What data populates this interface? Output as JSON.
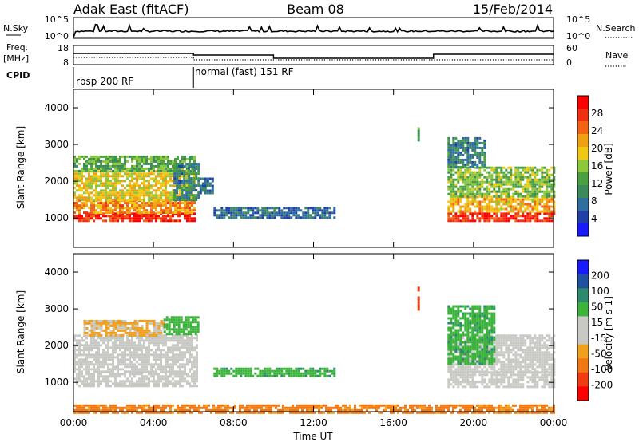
{
  "header": {
    "station": "Adak East (fitACF)",
    "beam": "Beam 08",
    "date": "15/Feb/2014"
  },
  "top_panels": {
    "nsky_label": "N.Sky",
    "nsky_ticks": [
      "10^5",
      "10^0"
    ],
    "nsearch_label": "N.Search",
    "nsearch_ticks": [
      "10^5",
      "10^0"
    ],
    "freq_label_1": "Freq.",
    "freq_label_2": "[MHz]",
    "freq_ticks": [
      "18",
      "8"
    ],
    "nave_label": "Nave",
    "nave_ticks": [
      "60",
      "0"
    ],
    "cpid_label": "CPID",
    "cpid_modes": [
      "rbsp 200 RF",
      "normal (fast) 151 RF"
    ]
  },
  "colors": {
    "ground": "#c8c8c4",
    "power_scale": [
      "#1a1aff",
      "#2040a8",
      "#2e6fa0",
      "#3a8a5a",
      "#4aa040",
      "#8cc83a",
      "#f0c814",
      "#f0a014",
      "#f06414",
      "#f03010",
      "#ff0000"
    ],
    "velocity_scale": [
      "#ff0000",
      "#f03c10",
      "#f07814",
      "#f0a01e",
      "#c8c8c4",
      "#c8c8c4",
      "#3cb43c",
      "#2e8a6e",
      "#2050a0",
      "#1a1aff"
    ]
  },
  "chart_data": [
    {
      "type": "heatmap",
      "name": "power",
      "xlabel": "",
      "ylabel": "Slant Range [km]",
      "colorbar_label": "Power [dB]",
      "colorbar_ticks": [
        "28",
        "24",
        "20",
        "16",
        "12",
        "8",
        "4"
      ],
      "y_ticks": [
        "4000",
        "3000",
        "2000",
        "1000"
      ],
      "ylim": [
        200,
        4500
      ],
      "xlim_hours": [
        0,
        24
      ],
      "regions": [
        {
          "t0": 0.0,
          "t1": 6.0,
          "r0": 900,
          "r1": 1150,
          "value": 28
        },
        {
          "t0": 0.0,
          "t1": 6.0,
          "r0": 1150,
          "r1": 1500,
          "value": 22
        },
        {
          "t0": 0.0,
          "t1": 6.0,
          "r0": 1500,
          "r1": 2300,
          "value": 18
        },
        {
          "t0": 0.0,
          "t1": 6.0,
          "r0": 2300,
          "r1": 2700,
          "value": 12
        },
        {
          "t0": 5.0,
          "t1": 6.3,
          "r0": 1500,
          "r1": 2500,
          "value": 8
        },
        {
          "t0": 6.3,
          "t1": 7.0,
          "r0": 1700,
          "r1": 2100,
          "value": 6
        },
        {
          "t0": 7.0,
          "t1": 13.0,
          "r0": 1000,
          "r1": 1300,
          "value": 6
        },
        {
          "t0": 18.7,
          "t1": 24.0,
          "r0": 900,
          "r1": 1150,
          "value": 28
        },
        {
          "t0": 18.7,
          "t1": 24.0,
          "r0": 1150,
          "r1": 1600,
          "value": 20
        },
        {
          "t0": 18.7,
          "t1": 24.0,
          "r0": 1600,
          "r1": 2400,
          "value": 14
        },
        {
          "t0": 18.7,
          "t1": 20.5,
          "r0": 2400,
          "r1": 3200,
          "value": 8
        },
        {
          "t0": 17.2,
          "t1": 17.3,
          "r0": 3000,
          "r1": 3600,
          "value": 12
        }
      ]
    },
    {
      "type": "heatmap",
      "name": "velocity",
      "xlabel": "Time UT",
      "ylabel": "Slant Range [km]",
      "colorbar_label": "Velocity [m s-1]",
      "colorbar_ticks": [
        "200",
        "100",
        "50",
        "15",
        "-15",
        "-50",
        "-100",
        "-200"
      ],
      "y_ticks": [
        "4000",
        "3000",
        "2000",
        "1000"
      ],
      "x_ticks": [
        "00:00",
        "04:00",
        "08:00",
        "12:00",
        "16:00",
        "20:00",
        "00:00"
      ],
      "ylim": [
        200,
        4500
      ],
      "xlim_hours": [
        0,
        24
      ],
      "regions": [
        {
          "t0": 0.0,
          "t1": 6.2,
          "r0": 900,
          "r1": 2300,
          "value": 0
        },
        {
          "t0": 0.5,
          "t1": 4.5,
          "r0": 2300,
          "r1": 2700,
          "value": -20
        },
        {
          "t0": 4.5,
          "t1": 6.2,
          "r0": 2300,
          "r1": 2800,
          "value": 30
        },
        {
          "t0": 7.0,
          "t1": 13.0,
          "r0": 1200,
          "r1": 1400,
          "value": 40
        },
        {
          "t0": 0.0,
          "t1": 24.0,
          "r0": 200,
          "r1": 400,
          "value": -60
        },
        {
          "t0": 17.2,
          "t1": 17.3,
          "r0": 3000,
          "r1": 3600,
          "value": -150
        },
        {
          "t0": 18.7,
          "t1": 24.0,
          "r0": 900,
          "r1": 1300,
          "value": 0
        },
        {
          "t0": 18.7,
          "t1": 24.0,
          "r0": 1300,
          "r1": 2300,
          "value": 0
        },
        {
          "t0": 18.7,
          "t1": 21.0,
          "r0": 1500,
          "r1": 3100,
          "value": 40
        }
      ]
    }
  ]
}
